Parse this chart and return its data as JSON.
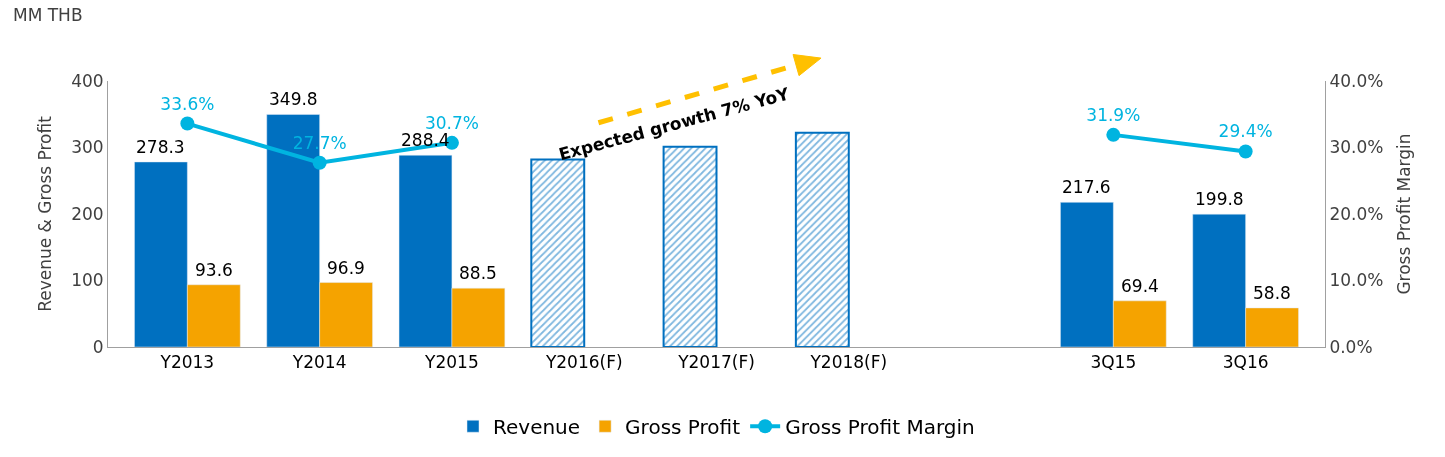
{
  "chart_data": {
    "type": "bar",
    "categories": [
      "Y2013",
      "Y2014",
      "Y2015",
      "Y2016(F)",
      "Y2017(F)",
      "Y2018(F)",
      null,
      "3Q15",
      "3Q16"
    ],
    "ylabel": "Revenue & Gross Profit",
    "y2label": "Gross Profit Margin",
    "annotations": [
      "MM THB",
      "Expected growth 7% YoY"
    ],
    "series": [
      {
        "name": "Revenue",
        "color": "#0070c0",
        "values": [
          278.3,
          349.8,
          288.4,
          null,
          null,
          null,
          null,
          217.6,
          199.8
        ],
        "value_labels": [
          "278.3",
          "349.8",
          "288.4",
          null,
          null,
          null,
          null,
          "217.6",
          "199.8"
        ]
      },
      {
        "name": "Gross Profit",
        "color": "#f5a300",
        "values": [
          93.6,
          96.9,
          88.5,
          null,
          null,
          null,
          null,
          69.4,
          58.8
        ],
        "value_labels": [
          "93.6",
          "96.9",
          "88.5",
          null,
          null,
          null,
          null,
          "69.4",
          "58.8"
        ]
      },
      {
        "color": "#0070c0",
        "values": [
          null,
          null,
          null,
          282,
          301,
          322,
          null,
          null,
          null
        ]
      },
      {
        "name": "Gross Profit Margin",
        "type": "line",
        "axis": "y2",
        "color": "#00b4e0",
        "values": [
          33.6,
          27.7,
          30.7,
          null,
          null,
          null,
          null,
          31.9,
          29.4
        ],
        "value_labels": [
          "33.6%",
          "27.7%",
          "30.7%",
          null,
          null,
          null,
          null,
          "31.9%",
          "29.4%"
        ]
      }
    ],
    "ylim": [
      0,
      400
    ],
    "yticks": [
      0,
      100,
      200,
      300,
      400
    ],
    "y2lim": [
      0,
      40
    ],
    "y2ticks": [
      {
        "value": 0,
        "label": "0.0%"
      },
      {
        "value": 10,
        "label": "10.0%"
      },
      {
        "value": 20,
        "label": "20.0%"
      },
      {
        "value": 30,
        "label": "30.0%"
      },
      {
        "value": 40,
        "label": "40.0%"
      }
    ],
    "legend": "bottom",
    "marker": "circle"
  }
}
